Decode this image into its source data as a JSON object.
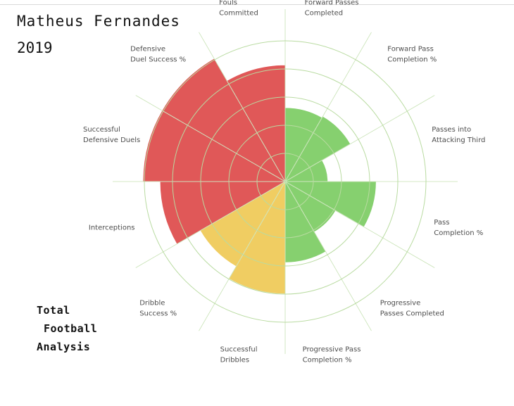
{
  "header": {
    "player": "Matheus Fernandes",
    "season": "2019"
  },
  "logo": {
    "line1": "Total",
    "line2": "Football",
    "line3": "Analysis"
  },
  "colors": {
    "attacking": "#f0cd62",
    "defensive": "#e05858",
    "passing": "#86d06f",
    "grid": "#b9dba1",
    "label": "#4d4d4d"
  },
  "chart_data": {
    "type": "radar",
    "title": "",
    "categories": [
      "Forward Passes Completed",
      "Forward Pass Completion %",
      "Passes into Attacking Third",
      "Pass Completion %",
      "Progressive Passes Completed",
      "Progressive Pass Completion %",
      "Successful Dribbles",
      "Dribble Success %",
      "Interceptions",
      "Successful Defensive Duels",
      "Defensive Duel Success %",
      "Fouls Committed"
    ],
    "values": [
      52,
      53,
      30,
      64,
      41,
      57,
      79,
      69,
      88,
      100,
      100,
      82
    ],
    "groups": [
      "passing",
      "passing",
      "passing",
      "passing",
      "passing",
      "passing",
      "attacking",
      "attacking",
      "defensive",
      "defensive",
      "defensive",
      "defensive"
    ],
    "range": [
      0,
      100
    ],
    "rings": [
      20,
      40,
      60,
      80,
      100
    ],
    "grid": true,
    "legend": "none"
  }
}
